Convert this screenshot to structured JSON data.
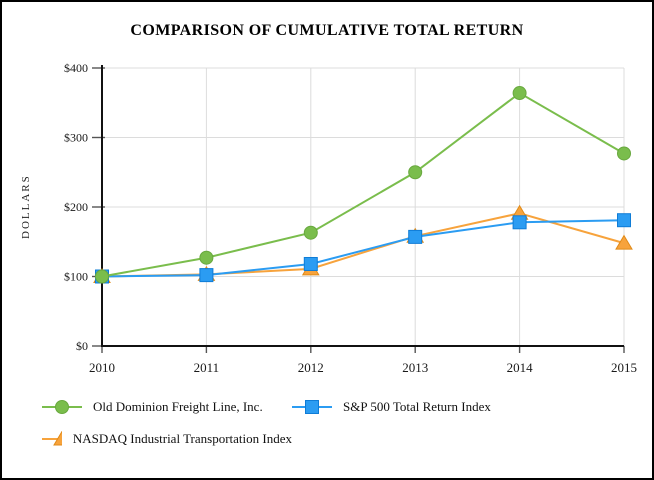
{
  "chart_data": {
    "type": "line",
    "title": "COMPARISON OF CUMULATIVE TOTAL RETURN",
    "ylabel": "DOLLARS",
    "xlabel": "",
    "categories": [
      "2010",
      "2011",
      "2012",
      "2013",
      "2014",
      "2015"
    ],
    "y_tick_labels": [
      "$0",
      "$100",
      "$200",
      "$300",
      "$400"
    ],
    "ylim": [
      0,
      400
    ],
    "y_tick_step": 100,
    "grid": true,
    "legend_position": "bottom",
    "grid_color": "#DCDCDC",
    "axis_color": "#111111",
    "tick_color": "#555555",
    "text_color": "#1a1a1a",
    "series": [
      {
        "name": "Old Dominion Freight Line, Inc.",
        "marker": "circle",
        "color": "#7ABD4C",
        "marker_stroke": "#68A83E",
        "values": [
          100,
          127,
          163,
          250,
          364,
          277
        ]
      },
      {
        "name": "S&P 500 Total Return Index",
        "marker": "square",
        "color": "#2B9CF2",
        "marker_stroke": "#0F7CD6",
        "values": [
          100,
          102,
          118,
          157,
          178,
          181
        ]
      },
      {
        "name": "NASDAQ Industrial Transportation Index",
        "marker": "triangle",
        "color": "#F7A33C",
        "marker_stroke": "#E18A17",
        "values": [
          100,
          103,
          111,
          158,
          191,
          148
        ]
      }
    ]
  }
}
